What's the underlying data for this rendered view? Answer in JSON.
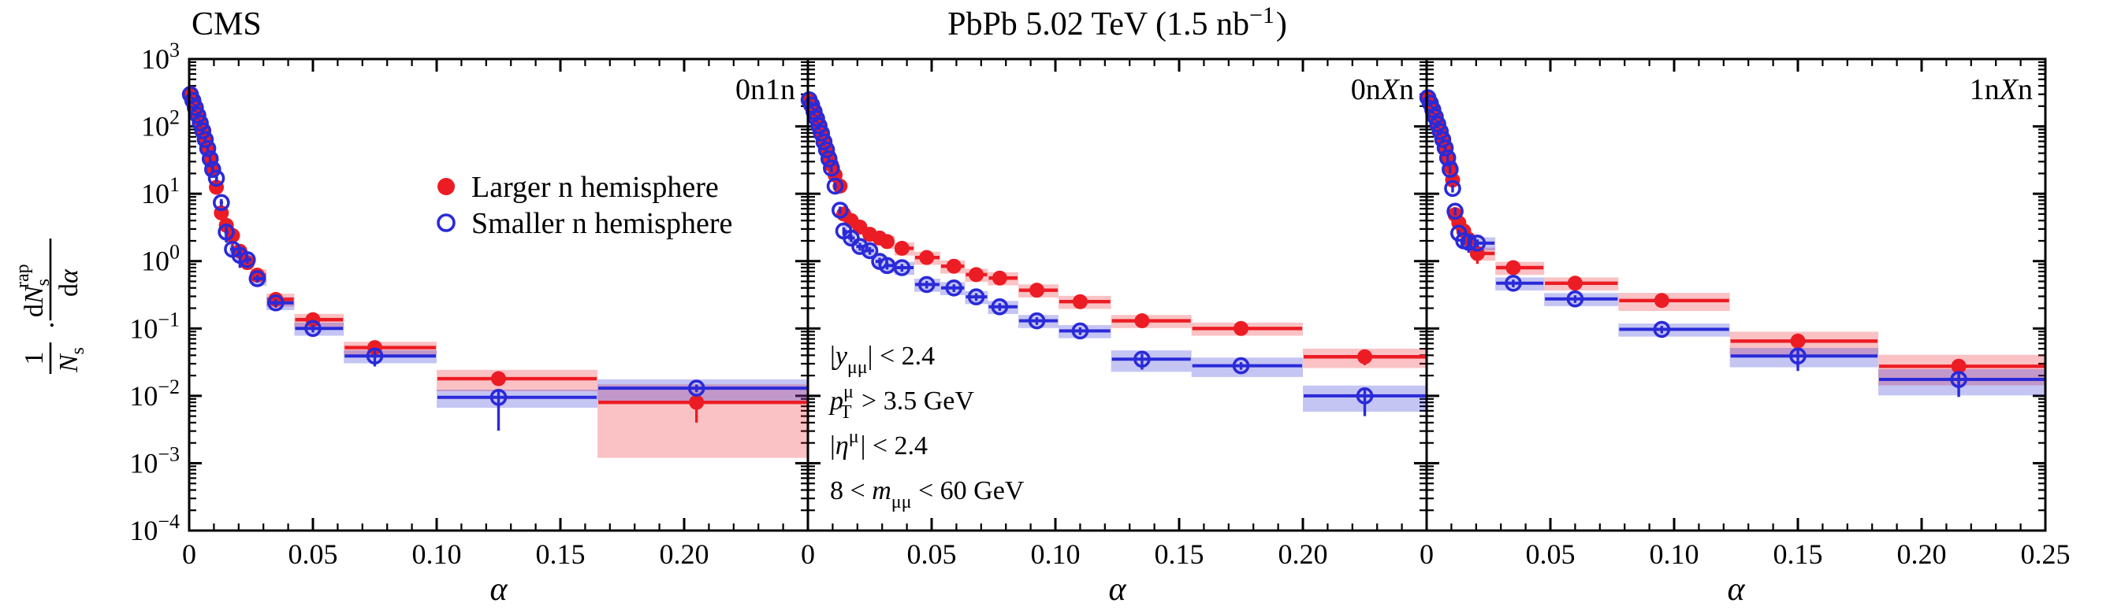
{
  "chart_data": {
    "type": "scatter",
    "title_parts": [
      {
        "t": "PbPb 5.02 TeV (1.5 nb"
      },
      {
        "t": "−1",
        "sup": true
      },
      {
        "t": ")",
        "dx": 2
      }
    ],
    "experiment_label": "CMS",
    "xlabel": "α",
    "ylabel": {
      "frac1_num": "1",
      "frac1_den_main": "N",
      "frac1_den_sub": "s",
      "dot": "·",
      "frac2_num_d": "d",
      "frac2_num_main": "N",
      "frac2_num_sub": "s",
      "frac2_num_sup": "rap",
      "frac2_den_d": "d",
      "frac2_den_var": "α"
    },
    "ylim": [
      0.0001,
      1000
    ],
    "xlim": [
      0,
      0.25
    ],
    "grid": false,
    "legend": {
      "position": "upper-middle-left-panel",
      "entries": [
        {
          "label": "Larger n hemisphere",
          "marker": "filled-circle",
          "color": "#ec1c24"
        },
        {
          "label": "Smaller n hemisphere",
          "marker": "open-circle",
          "color": "#2a2ad8"
        }
      ]
    },
    "annotations_lines": [
      [
        {
          "t": "|"
        },
        {
          "t": "y",
          "i": true
        },
        {
          "t": "μμ",
          "sub": true
        },
        {
          "t": "| < 2.4"
        }
      ],
      [
        {
          "t": "p",
          "i": true
        },
        {
          "t": "μ",
          "sup": true
        },
        {
          "t": "T",
          "sub": true,
          "dx": -17
        },
        {
          "t": " > 3.5 GeV",
          "dx": 4
        }
      ],
      [
        {
          "t": "|"
        },
        {
          "t": "η",
          "i": true
        },
        {
          "t": "μ",
          "sup": true
        },
        {
          "t": "| < 2.4",
          "dx": 2
        }
      ],
      [
        {
          "t": "8 < "
        },
        {
          "t": "m",
          "i": true
        },
        {
          "t": "μμ",
          "sub": true
        },
        {
          "t": " < 60 GeV"
        }
      ]
    ],
    "yticks": [
      {
        "exp": "3"
      },
      {
        "exp": "2"
      },
      {
        "exp": "1"
      },
      {
        "exp": "0"
      },
      {
        "exp": "−1"
      },
      {
        "exp": "−2"
      },
      {
        "exp": "−3"
      },
      {
        "exp": "−4"
      }
    ],
    "panels": [
      {
        "name": "0n1n",
        "label_parts": [
          {
            "t": "0n1n"
          }
        ],
        "xticks": [
          [
            0,
            "0"
          ],
          [
            0.05,
            "0.05"
          ],
          [
            0.1,
            "0.10"
          ],
          [
            0.15,
            "0.15"
          ],
          [
            0.2,
            "0.20"
          ]
        ],
        "x": [
          0.0005,
          0.0015,
          0.0025,
          0.0035,
          0.0045,
          0.0055,
          0.0065,
          0.0075,
          0.0085,
          0.0095,
          0.011,
          0.013,
          0.015,
          0.0175,
          0.0205,
          0.0235,
          0.0275,
          0.035,
          0.05,
          0.075,
          0.125,
          0.205
        ],
        "red": {
          "y": [
            310,
            250,
            195,
            150,
            115,
            88,
            66,
            48,
            34,
            24,
            12.5,
            5.2,
            3.4,
            2.4,
            1.4,
            0.95,
            0.62,
            0.27,
            0.135,
            0.052,
            0.018,
            0.008
          ],
          "err": [
            [
              13,
              0.3,
              0.15
            ],
            [
              17,
              0.25,
              0.15
            ],
            [
              21,
              0.5,
              0.3
            ]
          ],
          "band": [
            [
              20,
              0.35
            ],
            [
              21,
              0.85
            ]
          ]
        },
        "blue": {
          "y": [
            298,
            242,
            190,
            146,
            112,
            86,
            64,
            47,
            33,
            23,
            17,
            7.4,
            2.7,
            1.5,
            1.22,
            1.05,
            0.55,
            0.24,
            0.1,
            0.039,
            0.0095,
            0.013
          ],
          "err": [
            [
              12,
              0.3,
              0.2
            ],
            [
              14,
              0.35,
              0.2
            ],
            [
              19,
              0.3,
              0.2
            ],
            [
              20,
              0.68,
              0.3
            ]
          ],
          "band": [
            [
              20,
              0.3
            ],
            [
              21,
              0.35
            ]
          ]
        }
      },
      {
        "name": "0nXn",
        "label_parts": [
          {
            "t": "0n"
          },
          {
            "t": "X",
            "i": true
          },
          {
            "t": "n"
          }
        ],
        "xticks": [
          [
            0,
            "0"
          ],
          [
            0.05,
            "0.05"
          ],
          [
            0.1,
            "0.10"
          ],
          [
            0.15,
            "0.15"
          ],
          [
            0.2,
            "0.20"
          ]
        ],
        "x": [
          0.0005,
          0.0015,
          0.0025,
          0.0035,
          0.0045,
          0.0055,
          0.0065,
          0.0075,
          0.0085,
          0.0095,
          0.011,
          0.013,
          0.0145,
          0.0175,
          0.021,
          0.025,
          0.029,
          0.032,
          0.038,
          0.048,
          0.059,
          0.068,
          0.0775,
          0.0925,
          0.11,
          0.135,
          0.175,
          0.225
        ],
        "red": {
          "y": [
            255,
            215,
            172,
            136,
            106,
            83,
            63,
            48,
            36,
            27,
            19,
            13,
            5.0,
            4.0,
            3.2,
            2.5,
            2.2,
            1.95,
            1.55,
            1.13,
            0.84,
            0.63,
            0.56,
            0.37,
            0.25,
            0.13,
            0.1,
            0.038
          ],
          "err": [
            [
              27,
              0.25,
              0.15
            ]
          ],
          "band": [
            [
              27,
              0.32
            ]
          ]
        },
        "blue": {
          "y": [
            248,
            208,
            166,
            131,
            102,
            79,
            59,
            45,
            33,
            24,
            13,
            5.7,
            2.8,
            2.2,
            1.65,
            1.43,
            0.99,
            0.86,
            0.8,
            0.45,
            0.4,
            0.295,
            0.21,
            0.13,
            0.092,
            0.035,
            0.028,
            0.01
          ],
          "err": [
            [
              25,
              0.3,
              0.2
            ],
            [
              27,
              0.5,
              0.25
            ]
          ],
          "band": [
            [
              25,
              0.35
            ],
            [
              26,
              0.32
            ],
            [
              27,
              0.42
            ]
          ]
        }
      },
      {
        "name": "1nXn",
        "label_parts": [
          {
            "t": "1n"
          },
          {
            "t": "X",
            "i": true
          },
          {
            "t": "n"
          }
        ],
        "xticks": [
          [
            0,
            "0"
          ],
          [
            0.05,
            "0.05"
          ],
          [
            0.1,
            "0.10"
          ],
          [
            0.15,
            "0.15"
          ],
          [
            0.2,
            "0.20"
          ],
          [
            0.25,
            "0.25"
          ]
        ],
        "x": [
          0.0005,
          0.0015,
          0.0025,
          0.0035,
          0.0045,
          0.0055,
          0.0065,
          0.0075,
          0.0085,
          0.0095,
          0.0105,
          0.0115,
          0.013,
          0.015,
          0.017,
          0.0205,
          0.035,
          0.06,
          0.095,
          0.15,
          0.215
        ],
        "red": {
          "y": [
            275,
            228,
            182,
            143,
            111,
            86,
            66,
            50,
            36,
            25,
            16,
            4.9,
            3.7,
            2.8,
            2.1,
            1.3,
            0.8,
            0.47,
            0.26,
            0.065,
            0.0275
          ],
          "err": [
            [
              15,
              0.3,
              0.2
            ],
            [
              20,
              0.5,
              0.25
            ]
          ],
          "band": [
            [
              18,
              0.3
            ],
            [
              19,
              0.38
            ],
            [
              20,
              0.48
            ]
          ]
        },
        "blue": {
          "y": [
            266,
            221,
            177,
            139,
            108,
            84,
            64,
            48,
            34,
            23,
            12,
            5.5,
            2.6,
            2.0,
            1.9,
            1.85,
            0.47,
            0.275,
            0.097,
            0.039,
            0.0175
          ],
          "err": [
            [
              14,
              0.3,
              0.2
            ],
            [
              19,
              0.4,
              0.25
            ],
            [
              20,
              0.45,
              0.25
            ]
          ],
          "band": [
            [
              19,
              0.32
            ],
            [
              20,
              0.42
            ]
          ]
        }
      }
    ],
    "style": {
      "red": "#ec1c24",
      "blue": "#2a2ad8",
      "axis_color": "#000000",
      "band_opacity": 0.27,
      "band_frac_default": 0.22,
      "err_frac_default": 0.13
    }
  }
}
